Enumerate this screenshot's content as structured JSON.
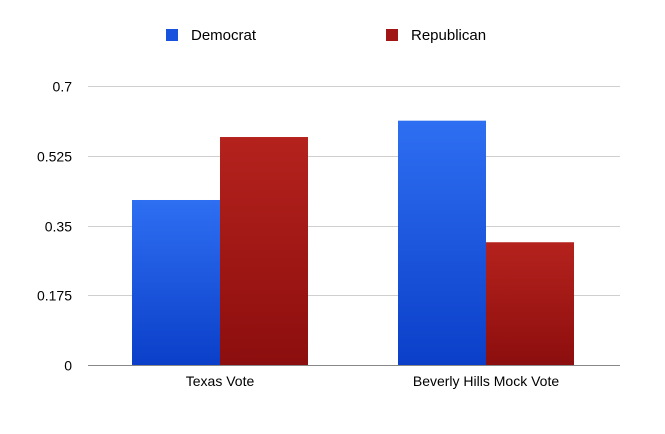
{
  "chart_data": {
    "type": "bar",
    "categories": [
      "Texas Vote",
      "Beverly Hills Mock Vote"
    ],
    "series": [
      {
        "name": "Democrat",
        "values": [
          0.414,
          0.613
        ]
      },
      {
        "name": "Republican",
        "values": [
          0.572,
          0.308
        ]
      }
    ],
    "ylim": [
      0,
      0.7
    ],
    "yticks": [
      0,
      0.175,
      0.35,
      0.525,
      0.7
    ],
    "ytick_labels": [
      "0",
      "0.175",
      "0.35",
      "0.525",
      "0.7"
    ],
    "grid": true,
    "legend_position": "top",
    "title": "",
    "xlabel": "",
    "ylabel": ""
  },
  "colors": {
    "Democrat": {
      "light": "#2e6ff2",
      "dark": "#0b3fc9",
      "swatch": "#1753dc"
    },
    "Republican": {
      "light": "#b5221d",
      "dark": "#8c0e0e",
      "swatch": "#a01616"
    },
    "grid": "#cfcfcf",
    "axis": "#888888"
  }
}
